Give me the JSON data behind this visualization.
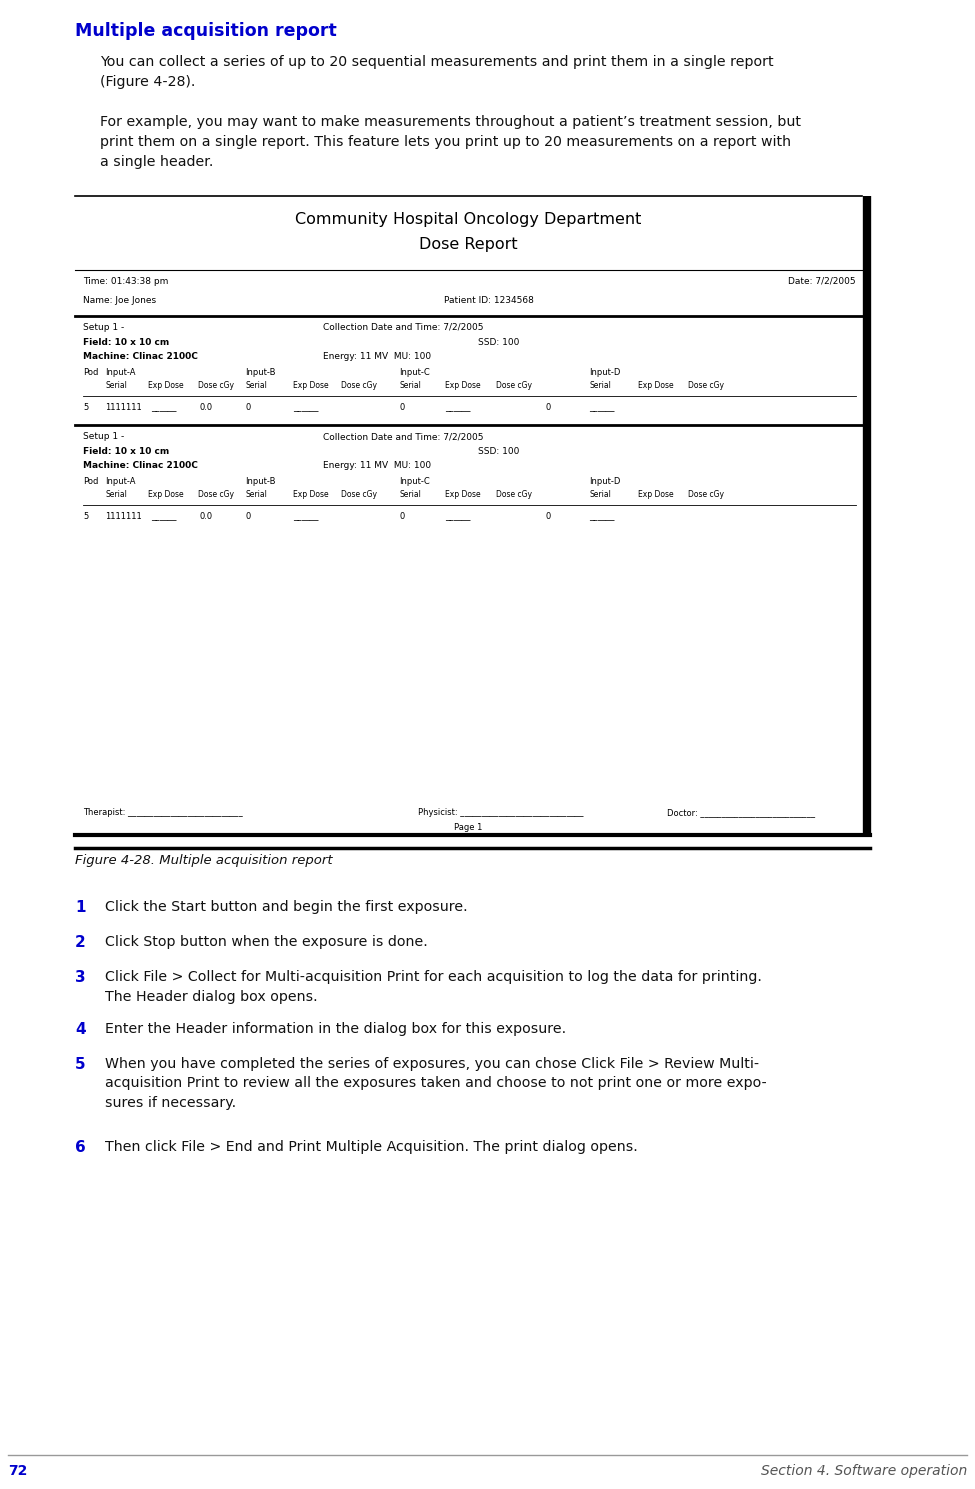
{
  "bg_color": "#ffffff",
  "title_heading": "Multiple acquisition report",
  "title_color": "#0000cc",
  "title_fontsize": 12.5,
  "para1": "You can collect a series of up to 20 sequential measurements and print them in a single report\n(Figure 4-28).",
  "para2": "For example, you may want to make measurements throughout a patient’s treatment session, but\nprint them on a single report. This feature lets you print up to 20 measurements on a report with\na single header.",
  "para_fontsize": 10.2,
  "para_color": "#111111",
  "figure_label": "Figure 4-28. Multiple acquisition report",
  "figure_label_fontsize": 9.5,
  "doc_title1": "Community Hospital Oncology Department",
  "doc_title2": "Dose Report",
  "doc_title_fontsize": 11.5,
  "doc_time": "Time: 01:43:38 pm",
  "doc_date": "Date: 7/2/2005",
  "doc_name": "Name: Joe Jones",
  "doc_patient": "Patient ID: 1234568",
  "setup_line1": "Setup 1 -",
  "setup_line2": "Field: 10 x 10 cm",
  "setup_line3": "Machine: Clinac 2100C",
  "collection_line1": "Collection Date and Time: 7/2/2005",
  "collection_line2_left": "SSD: 100",
  "collection_line3": "Energy: 11 MV  MU: 100",
  "footer_therapist": "Therapist: ___________________________",
  "footer_physicist": "Physicist: _____________________________",
  "footer_doctor": "Doctor: ___________________________",
  "footer_page": "Page 1",
  "numbered_items": [
    {
      "num": "1",
      "text": "Click the Start button and begin the first exposure."
    },
    {
      "num": "2",
      "text": "Click Stop button when the exposure is done."
    },
    {
      "num": "3",
      "text": "Click File > Collect for Multi-acquisition Print for each acquisition to log the data for printing.\nThe Header dialog box opens."
    },
    {
      "num": "4",
      "text": "Enter the Header information in the dialog box for this exposure."
    },
    {
      "num": "5",
      "text": "When you have completed the series of exposures, you can chose Click File > Review Multi-\nacquisition Print to review all the exposures taken and choose to not print one or more expo-\nsures if necessary."
    },
    {
      "num": "6",
      "text": "Then click File > End and Print Multiple Acquisition. The print dialog opens."
    }
  ],
  "num_color": "#0000cc",
  "num_fontsize": 11,
  "item_fontsize": 10.2,
  "footer_page_num": "72",
  "footer_section": "Section 4. Software operation",
  "footer_fontsize": 10,
  "footer_num_color": "#0000cc",
  "footer_section_color": "#555555"
}
